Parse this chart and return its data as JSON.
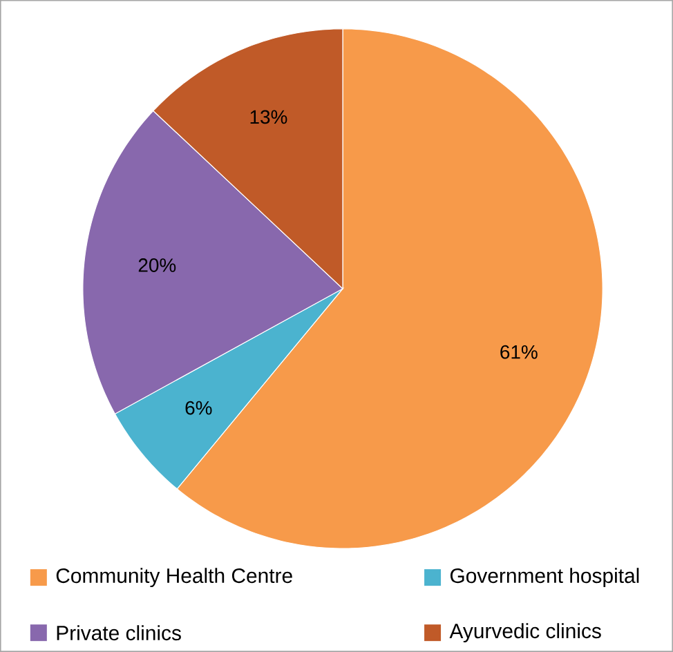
{
  "chart_data": {
    "type": "pie",
    "categories": [
      "Community Health Centre",
      "Government hospital",
      "Private clinics",
      "Ayurvedic clinics"
    ],
    "values": [
      61,
      6,
      20,
      13
    ],
    "colors": [
      "#f79a4a",
      "#4bb3cf",
      "#8868ad",
      "#c05a28"
    ],
    "value_labels": [
      "61%",
      "6%",
      "20%",
      "13%"
    ],
    "legend": "bottom"
  }
}
